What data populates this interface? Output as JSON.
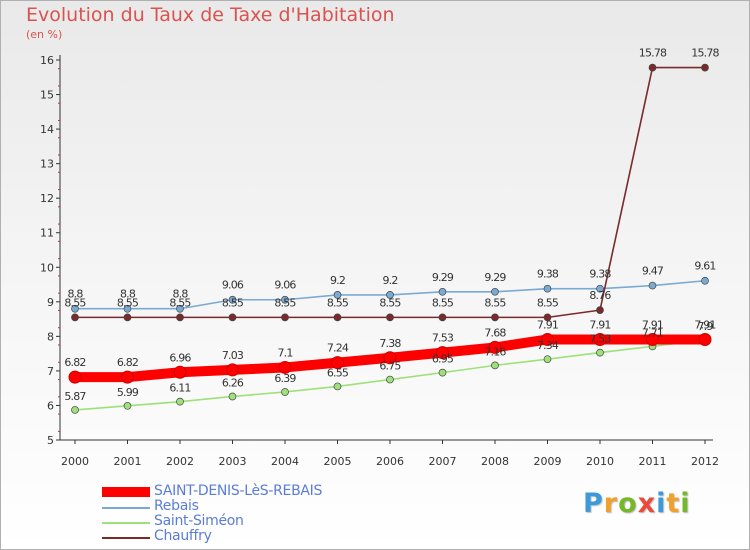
{
  "header": {
    "title": "Evolution du Taux de Taxe d'Habitation",
    "subtitle": "(en %)"
  },
  "logo": {
    "letters": [
      "P",
      "r",
      "o",
      "x",
      "i",
      "t",
      "i"
    ],
    "colors": [
      "#3c9ad8",
      "#f2a02c",
      "#76b82a",
      "#e84b3c",
      "#3c9ad8",
      "#f2a02c",
      "#76b82a"
    ]
  },
  "chart_data": {
    "type": "line",
    "title": "Evolution du Taux de Taxe d'Habitation",
    "ylabel": "(en %)",
    "xlabel": "",
    "x": [
      "2000",
      "2001",
      "2002",
      "2003",
      "2004",
      "2005",
      "2006",
      "2007",
      "2008",
      "2009",
      "2010",
      "2011",
      "2012"
    ],
    "ylim": [
      5,
      16
    ],
    "yticks": [
      5,
      6,
      7,
      8,
      9,
      10,
      11,
      12,
      13,
      14,
      15,
      16
    ],
    "grid": false,
    "legend": "bottom-left",
    "series": [
      {
        "name": "SAINT-DENIS-LèS-REBAIS",
        "color": "#ff0000",
        "values": [
          6.82,
          6.82,
          6.96,
          7.03,
          7.1,
          7.24,
          7.38,
          7.53,
          7.68,
          7.91,
          7.91,
          7.91,
          7.91
        ],
        "labels": [
          "6.82",
          "6.82",
          "6.96",
          "7.03",
          "7.1",
          "7.24",
          "7.38",
          "7.53",
          "7.68",
          "7.91",
          "7.91",
          "7.91",
          "7.91"
        ]
      },
      {
        "name": "Rebais",
        "color": "#7aaad2",
        "values": [
          8.8,
          8.8,
          8.8,
          9.06,
          9.06,
          9.2,
          9.2,
          9.29,
          9.29,
          9.38,
          9.38,
          9.47,
          9.61
        ],
        "labels": [
          "8.8",
          "8.8",
          "8.8",
          "9.06",
          "9.06",
          "9.2",
          "9.2",
          "9.29",
          "9.29",
          "9.38",
          "9.38",
          "9.47",
          "9.61"
        ]
      },
      {
        "name": "Saint-Siméon",
        "color": "#9ee07a",
        "values": [
          5.87,
          5.99,
          6.11,
          6.26,
          6.39,
          6.55,
          6.75,
          6.95,
          7.16,
          7.34,
          7.53,
          7.71,
          7.9
        ],
        "labels": [
          "5.87",
          "5.99",
          "6.11",
          "6.26",
          "6.39",
          "6.55",
          "6.75",
          "6.95",
          "7.16",
          "7.34",
          "7.53",
          "7.71",
          "7.9"
        ]
      },
      {
        "name": "Chauffry",
        "color": "#7a2a2a",
        "values": [
          8.55,
          8.55,
          8.55,
          8.55,
          8.55,
          8.55,
          8.55,
          8.55,
          8.55,
          8.55,
          8.76,
          15.78,
          15.78
        ],
        "labels": [
          "8.55",
          "8.55",
          "8.55",
          "8.55",
          "8.55",
          "8.55",
          "8.55",
          "8.55",
          "8.55",
          "8.55",
          "8.76",
          "15.78",
          "15.78"
        ]
      }
    ]
  }
}
